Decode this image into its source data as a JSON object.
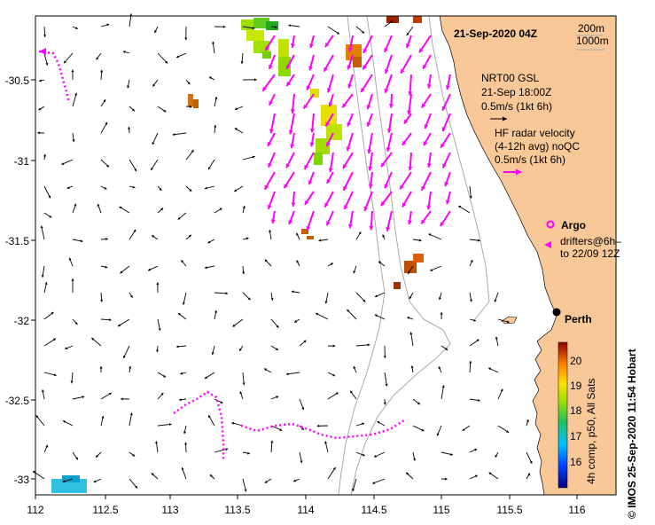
{
  "title": "21-Sep-2020 04Z",
  "depth_contours": [
    "200m",
    "1000m"
  ],
  "model": {
    "name": "NRT00 GSL",
    "time": "21-Sep 18:00Z",
    "scale": "0.5m/s (1kt 6h)"
  },
  "radar": {
    "line1": "HF radar velocity",
    "line2": "(4-12h avg) noQC",
    "scale": "0.5m/s (1kt 6h)"
  },
  "argo_label": "Argo",
  "drifters_line1": "drifters@6h–",
  "drifters_line2": "to 22/09 12Z",
  "city": "Perth",
  "colorbar": {
    "label": "4h comp, p50, All Sats",
    "ticks": [
      "20",
      "19",
      "18",
      "17",
      "16"
    ]
  },
  "credit": "IMOS 25-Sep-2020 11:54 Hobart",
  "copyright_symbol": "©",
  "axes": {
    "x_ticks": [
      "112",
      "112.5",
      "113",
      "113.5",
      "114",
      "114.5",
      "115",
      "115.5",
      "116"
    ],
    "y_ticks": [
      "-30.5",
      "-31",
      "-31.5",
      "-32",
      "-32.5",
      "-33"
    ]
  },
  "colors": {
    "land": "#f8c898",
    "model_arrows": "#000000",
    "radar_arrows": "#ff00ff",
    "drifters": "#ff00ff",
    "contours": "#aaaaaa"
  }
}
